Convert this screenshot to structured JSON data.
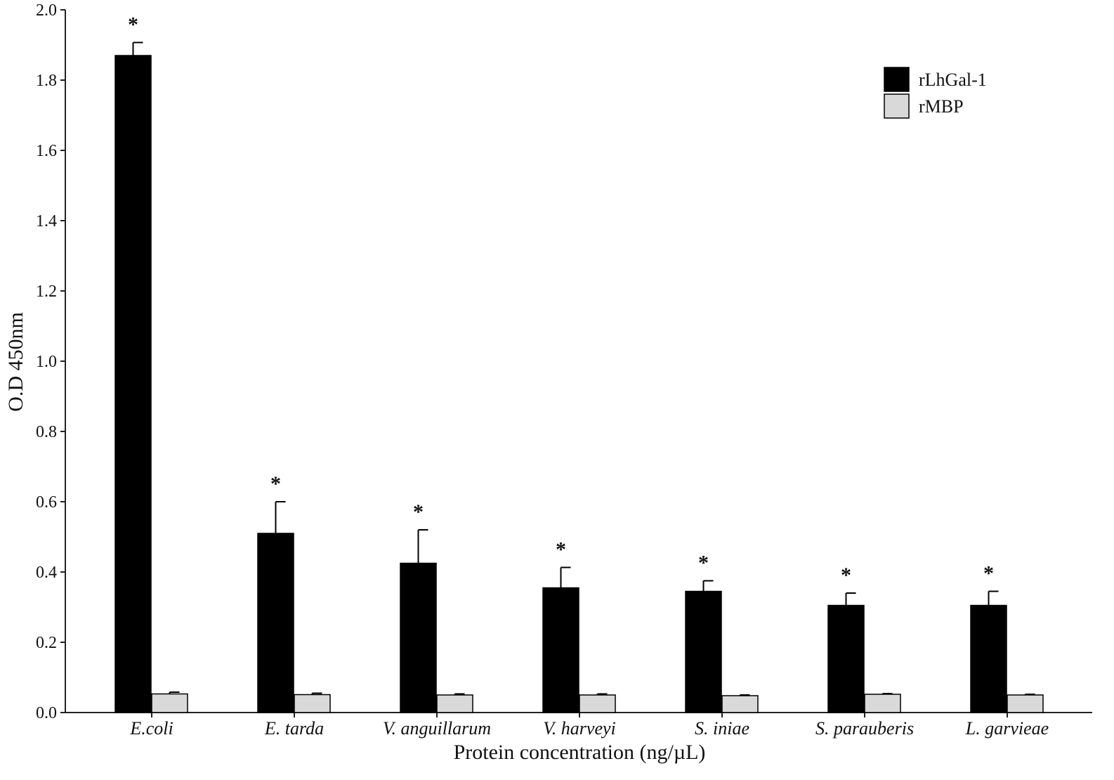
{
  "chart_data": {
    "type": "bar",
    "title": "",
    "xlabel": "Protein concentration (ng/µL)",
    "ylabel": "O.D 450nm",
    "ylim": [
      0,
      2.0
    ],
    "yticks": [
      0.0,
      0.2,
      0.4,
      0.6,
      0.8,
      1.0,
      1.2,
      1.4,
      1.6,
      1.8,
      2.0
    ],
    "ytick_labels": [
      "0.0",
      "0.2",
      "0.4",
      "0.6",
      "0.8",
      "1.0",
      "1.2",
      "1.4",
      "1.6",
      "1.8",
      "2.0"
    ],
    "categories": [
      "E.coli",
      "E. tarda",
      "V. anguillarum",
      "V. harveyi",
      "S. iniae",
      "S. parauberis",
      "L. garvieae"
    ],
    "series": [
      {
        "name": "rLhGal-1",
        "color": "#000000",
        "values": [
          1.87,
          0.51,
          0.425,
          0.355,
          0.345,
          0.305,
          0.305
        ],
        "errors": [
          0.037,
          0.09,
          0.095,
          0.058,
          0.03,
          0.035,
          0.04
        ]
      },
      {
        "name": "rMBP",
        "color": "#d9d9d9",
        "values": [
          0.053,
          0.051,
          0.05,
          0.05,
          0.048,
          0.052,
          0.05
        ],
        "errors": [
          0.005,
          0.004,
          0.003,
          0.003,
          0.002,
          0.002,
          0.002
        ]
      }
    ],
    "significance": [
      "*",
      "*",
      "*",
      "*",
      "*",
      "*",
      "*"
    ],
    "legend": "top-right",
    "grid": false
  }
}
